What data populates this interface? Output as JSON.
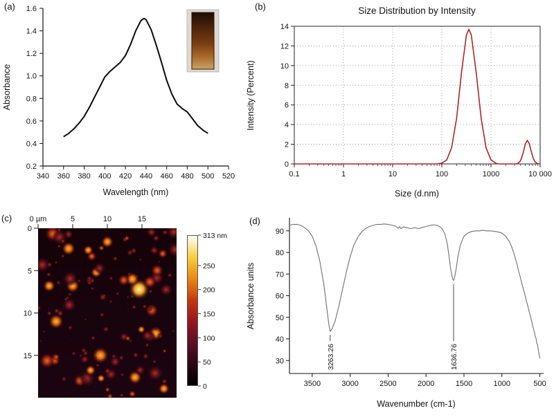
{
  "panel_labels": {
    "a": "(a)",
    "b": "(b)",
    "c": "(c)",
    "d": "(d)"
  },
  "chart_data": [
    {
      "id": "uv_vis_absorbance_spectrum",
      "panel": "a",
      "type": "line",
      "xlabel": "Wavelength (nm)",
      "ylabel": "Absorbance",
      "xlim": [
        340,
        520
      ],
      "ylim": [
        0.2,
        1.6
      ],
      "xticks": [
        340,
        360,
        380,
        400,
        420,
        440,
        460,
        480,
        500,
        520
      ],
      "yticks": [
        0.2,
        0.4,
        0.6,
        0.8,
        1.0,
        1.2,
        1.4,
        1.6
      ],
      "line_color": "#0a0a0a",
      "peak": {
        "x": 438,
        "y": 1.51
      },
      "x": [
        360,
        365,
        370,
        375,
        380,
        385,
        390,
        395,
        400,
        405,
        410,
        415,
        420,
        425,
        430,
        435,
        438,
        440,
        445,
        450,
        455,
        460,
        465,
        470,
        475,
        480,
        485,
        490,
        495,
        500
      ],
      "y": [
        0.46,
        0.49,
        0.53,
        0.58,
        0.64,
        0.72,
        0.81,
        0.9,
        0.99,
        1.04,
        1.08,
        1.12,
        1.18,
        1.28,
        1.4,
        1.49,
        1.51,
        1.5,
        1.41,
        1.27,
        1.12,
        0.96,
        0.84,
        0.75,
        0.71,
        0.68,
        0.62,
        0.56,
        0.52,
        0.49
      ],
      "inset": "cuvette-with-brown-colloidal-solution"
    },
    {
      "id": "dls_size_distribution",
      "panel": "b",
      "type": "line",
      "title": "Size Distribution by Intensity",
      "xlabel": "Size (d.nm)",
      "ylabel": "Intensity (Percent)",
      "xscale": "log",
      "xlim": [
        0.1,
        10000
      ],
      "ylim": [
        0,
        14
      ],
      "yticks": [
        0,
        2,
        4,
        6,
        8,
        10,
        12,
        14
      ],
      "xticks": [
        0.1,
        1,
        10,
        100,
        1000,
        10000
      ],
      "xtick_labels": [
        "0.1",
        "1",
        "10",
        "100",
        "1000",
        "10 000"
      ],
      "grid": "dotted",
      "line_color": "#b22222",
      "x": [
        0.1,
        1,
        10,
        50,
        79,
        100,
        126,
        158,
        200,
        251,
        316,
        355,
        398,
        501,
        631,
        794,
        1000,
        1259,
        1413,
        3162,
        3548,
        3981,
        4467,
        5012,
        5495,
        6026,
        6607,
        7244,
        7943,
        8710,
        9500
      ],
      "y": [
        0,
        0,
        0,
        0,
        0,
        0.07,
        0.41,
        1.64,
        4.65,
        9.29,
        13.1,
        13.7,
        13.1,
        9.29,
        4.65,
        1.64,
        0.41,
        0.07,
        0,
        0,
        0.06,
        0.32,
        1.05,
        2.04,
        2.4,
        2.04,
        1.25,
        0.55,
        0.18,
        0.05,
        0
      ]
    },
    {
      "id": "afm_topography_image",
      "panel": "c",
      "type": "heatmap",
      "axis_unit": "µm",
      "xlim": [
        0,
        20
      ],
      "ylim": [
        0,
        20
      ],
      "xticks": [
        0,
        5,
        10,
        15
      ],
      "xtick_labels": [
        "0 µm",
        "5",
        "10",
        "15"
      ],
      "yticks": [
        0,
        5,
        10,
        15
      ],
      "ytick_labels": [
        "0",
        "5",
        "10",
        "15"
      ],
      "colorbar": {
        "max_value": 313,
        "tick_values": [
          313,
          250,
          200,
          150,
          100,
          50,
          0
        ],
        "tick_labels": [
          "313 nm",
          "250",
          "200",
          "150",
          "100",
          "50",
          "0"
        ],
        "colors": [
          "#000000",
          "#2a0714",
          "#5c0f26",
          "#97161e",
          "#c43a10",
          "#e88912",
          "#f5cf3f",
          "#ffffff"
        ]
      },
      "hotspots": [
        {
          "x": 0.73,
          "y": 0.36,
          "r": 0.075,
          "t": 0.95
        },
        {
          "x": 0.68,
          "y": 0.3,
          "r": 0.05,
          "t": 0.8
        },
        {
          "x": 0.25,
          "y": 0.34,
          "r": 0.05,
          "t": 0.85
        },
        {
          "x": 0.13,
          "y": 0.55,
          "r": 0.055,
          "t": 0.8
        },
        {
          "x": 0.08,
          "y": 0.34,
          "r": 0.045,
          "t": 0.7
        },
        {
          "x": 0.42,
          "y": 0.26,
          "r": 0.04,
          "t": 0.7
        },
        {
          "x": 0.5,
          "y": 0.08,
          "r": 0.045,
          "t": 0.75
        },
        {
          "x": 0.22,
          "y": 0.12,
          "r": 0.05,
          "t": 0.7
        },
        {
          "x": 0.85,
          "y": 0.62,
          "r": 0.05,
          "t": 0.75
        },
        {
          "x": 0.45,
          "y": 0.75,
          "r": 0.06,
          "t": 0.8
        },
        {
          "x": 0.7,
          "y": 0.88,
          "r": 0.05,
          "t": 0.7
        },
        {
          "x": 0.3,
          "y": 0.9,
          "r": 0.045,
          "t": 0.65
        },
        {
          "x": 0.12,
          "y": 0.78,
          "r": 0.04,
          "t": 0.6
        },
        {
          "x": 0.9,
          "y": 0.15,
          "r": 0.035,
          "t": 0.6
        }
      ]
    },
    {
      "id": "ftir_spectrum",
      "panel": "d",
      "type": "line",
      "xlabel": "Wavenumber (cm-1)",
      "ylabel": "Absorbance units",
      "x_reversed": true,
      "xlim": [
        3800,
        450
      ],
      "ylim": [
        24,
        96
      ],
      "xticks": [
        3500,
        3000,
        2500,
        2000,
        1500,
        1000,
        500
      ],
      "yticks": [
        30,
        40,
        50,
        60,
        70,
        80,
        90
      ],
      "line_color": "#6f6f6f",
      "annotations": [
        {
          "x": 3263.26,
          "y": 43.5,
          "label": "3263.26"
        },
        {
          "x": 1636.76,
          "y": 67,
          "label": "1636.76"
        }
      ],
      "x": [
        3800,
        3750,
        3700,
        3650,
        3600,
        3550,
        3500,
        3450,
        3400,
        3350,
        3300,
        3280,
        3263,
        3240,
        3200,
        3150,
        3100,
        3050,
        3000,
        2950,
        2900,
        2850,
        2800,
        2750,
        2700,
        2650,
        2600,
        2550,
        2500,
        2450,
        2400,
        2370,
        2350,
        2330,
        2300,
        2250,
        2200,
        2150,
        2100,
        2050,
        2000,
        1950,
        1900,
        1850,
        1800,
        1780,
        1750,
        1720,
        1700,
        1680,
        1660,
        1645,
        1636,
        1620,
        1600,
        1580,
        1550,
        1520,
        1500,
        1450,
        1400,
        1350,
        1300,
        1250,
        1200,
        1150,
        1100,
        1050,
        1000,
        950,
        900,
        870,
        850,
        820,
        800,
        780,
        760,
        740,
        720,
        700,
        680,
        660,
        640,
        620,
        600,
        590,
        580,
        570,
        560,
        550,
        540,
        530,
        520,
        510,
        500
      ],
      "y": [
        92.5,
        93,
        93,
        92.5,
        91.5,
        90,
        87.5,
        83,
        76,
        66,
        52,
        46.5,
        43.5,
        44.5,
        48,
        55,
        63,
        71,
        78,
        83.5,
        87,
        89.5,
        91,
        92,
        92.5,
        93,
        93,
        93.2,
        93,
        92.6,
        92.2,
        91.2,
        92,
        91,
        91.8,
        91.5,
        91,
        91.5,
        91,
        91.6,
        92,
        92.5,
        92.8,
        92.5,
        91.5,
        90.5,
        88.5,
        84,
        79,
        73.5,
        69.5,
        67.5,
        67,
        69,
        73,
        78,
        83,
        86,
        87.5,
        89,
        89.7,
        90,
        90,
        90.2,
        90,
        90,
        89.8,
        89.5,
        89,
        87.5,
        85,
        82.5,
        80.5,
        77,
        74.5,
        71.5,
        69,
        66,
        63.5,
        61,
        58,
        55.5,
        52.5,
        50,
        47,
        45.5,
        44,
        43,
        41,
        40.5,
        38,
        37.5,
        35,
        33,
        31
      ]
    }
  ]
}
